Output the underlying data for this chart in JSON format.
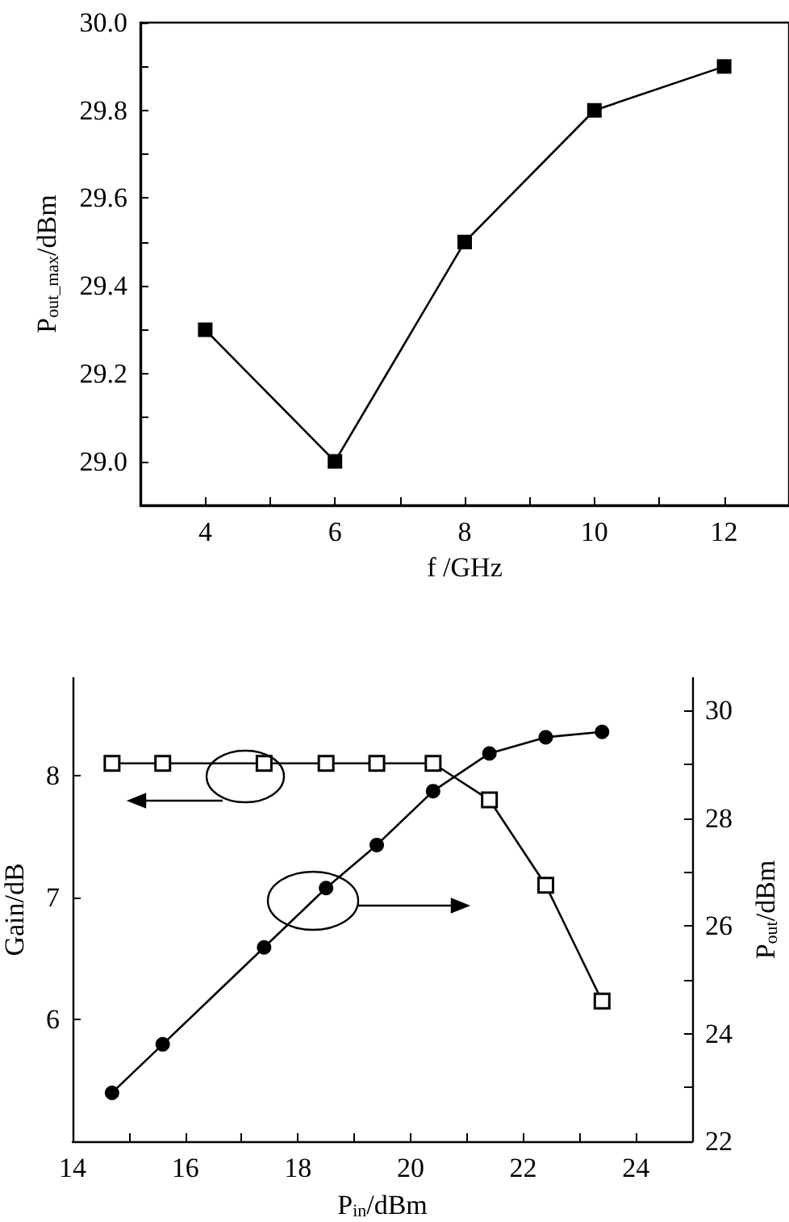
{
  "chart_data": [
    {
      "type": "line",
      "xlabel": "f /GHz",
      "ylabel": "P$_{out_max}$/dBm",
      "x": [
        4,
        6,
        8,
        10,
        12
      ],
      "series": [
        {
          "color": "#000000",
          "marker": "square",
          "values": [
            29.3,
            29.0,
            29.5,
            29.8,
            29.9
          ]
        }
      ],
      "xlim": [
        3,
        13
      ],
      "xticks": [
        4,
        {
          "value": 5,
          "label": null
        },
        6,
        {
          "value": 7,
          "label": null
        },
        8,
        {
          "value": 9,
          "label": null
        },
        10,
        {
          "value": 11,
          "label": null
        },
        12
      ],
      "ylim": [
        28.9,
        30.0
      ],
      "yticks": [
        {
          "value": 29.0,
          "label": "29.0"
        },
        {
          "value": 29.1,
          "label": null
        },
        29.2,
        {
          "value": 29.3,
          "label": null
        },
        29.4,
        {
          "value": 29.5,
          "label": null
        },
        29.6,
        {
          "value": 29.7,
          "label": null
        },
        29.8,
        {
          "value": 29.9,
          "label": null
        },
        {
          "value": 30.0,
          "label": "30.0"
        }
      ]
    },
    {
      "type": "line",
      "xlabel": "P$_{in}$/dBm",
      "ylabel": "Gain/dB",
      "y2label": "P$_{out}$/dBm",
      "x": [
        14.7,
        15.6,
        17.4,
        18.5,
        19.4,
        20.4,
        21.4,
        22.4,
        23.4
      ],
      "series": [
        {
          "color": "#000000",
          "marker": "square",
          "values": [
            8.1,
            8.1,
            8.1,
            8.1,
            8.1,
            8.1,
            7.8,
            7.1,
            6.15
          ]
        },
        {
          "color": "#000000",
          "marker": "circle",
          "axis": "y2",
          "values": [
            22.9,
            23.8,
            25.6,
            26.7,
            27.5,
            28.5,
            29.2,
            29.5,
            29.6
          ]
        }
      ],
      "xlim": [
        14,
        25
      ],
      "xticks": [
        14,
        {
          "value": 15,
          "label": null
        },
        16,
        {
          "value": 17,
          "label": null
        },
        18,
        {
          "value": 19,
          "label": null
        },
        20,
        {
          "value": 21,
          "label": null
        },
        22,
        {
          "value": 23,
          "label": null
        },
        24
      ],
      "ylim": [
        5,
        8.8
      ],
      "yticks": [
        6,
        7,
        8
      ],
      "y2lim": [
        22,
        30.6
      ],
      "y2ticks": [
        22,
        {
          "value": 23,
          "label": null
        },
        24,
        {
          "value": 25,
          "label": null
        },
        26,
        {
          "value": 27,
          "label": null
        },
        28,
        {
          "value": 29,
          "label": null
        },
        30
      ]
    }
  ]
}
